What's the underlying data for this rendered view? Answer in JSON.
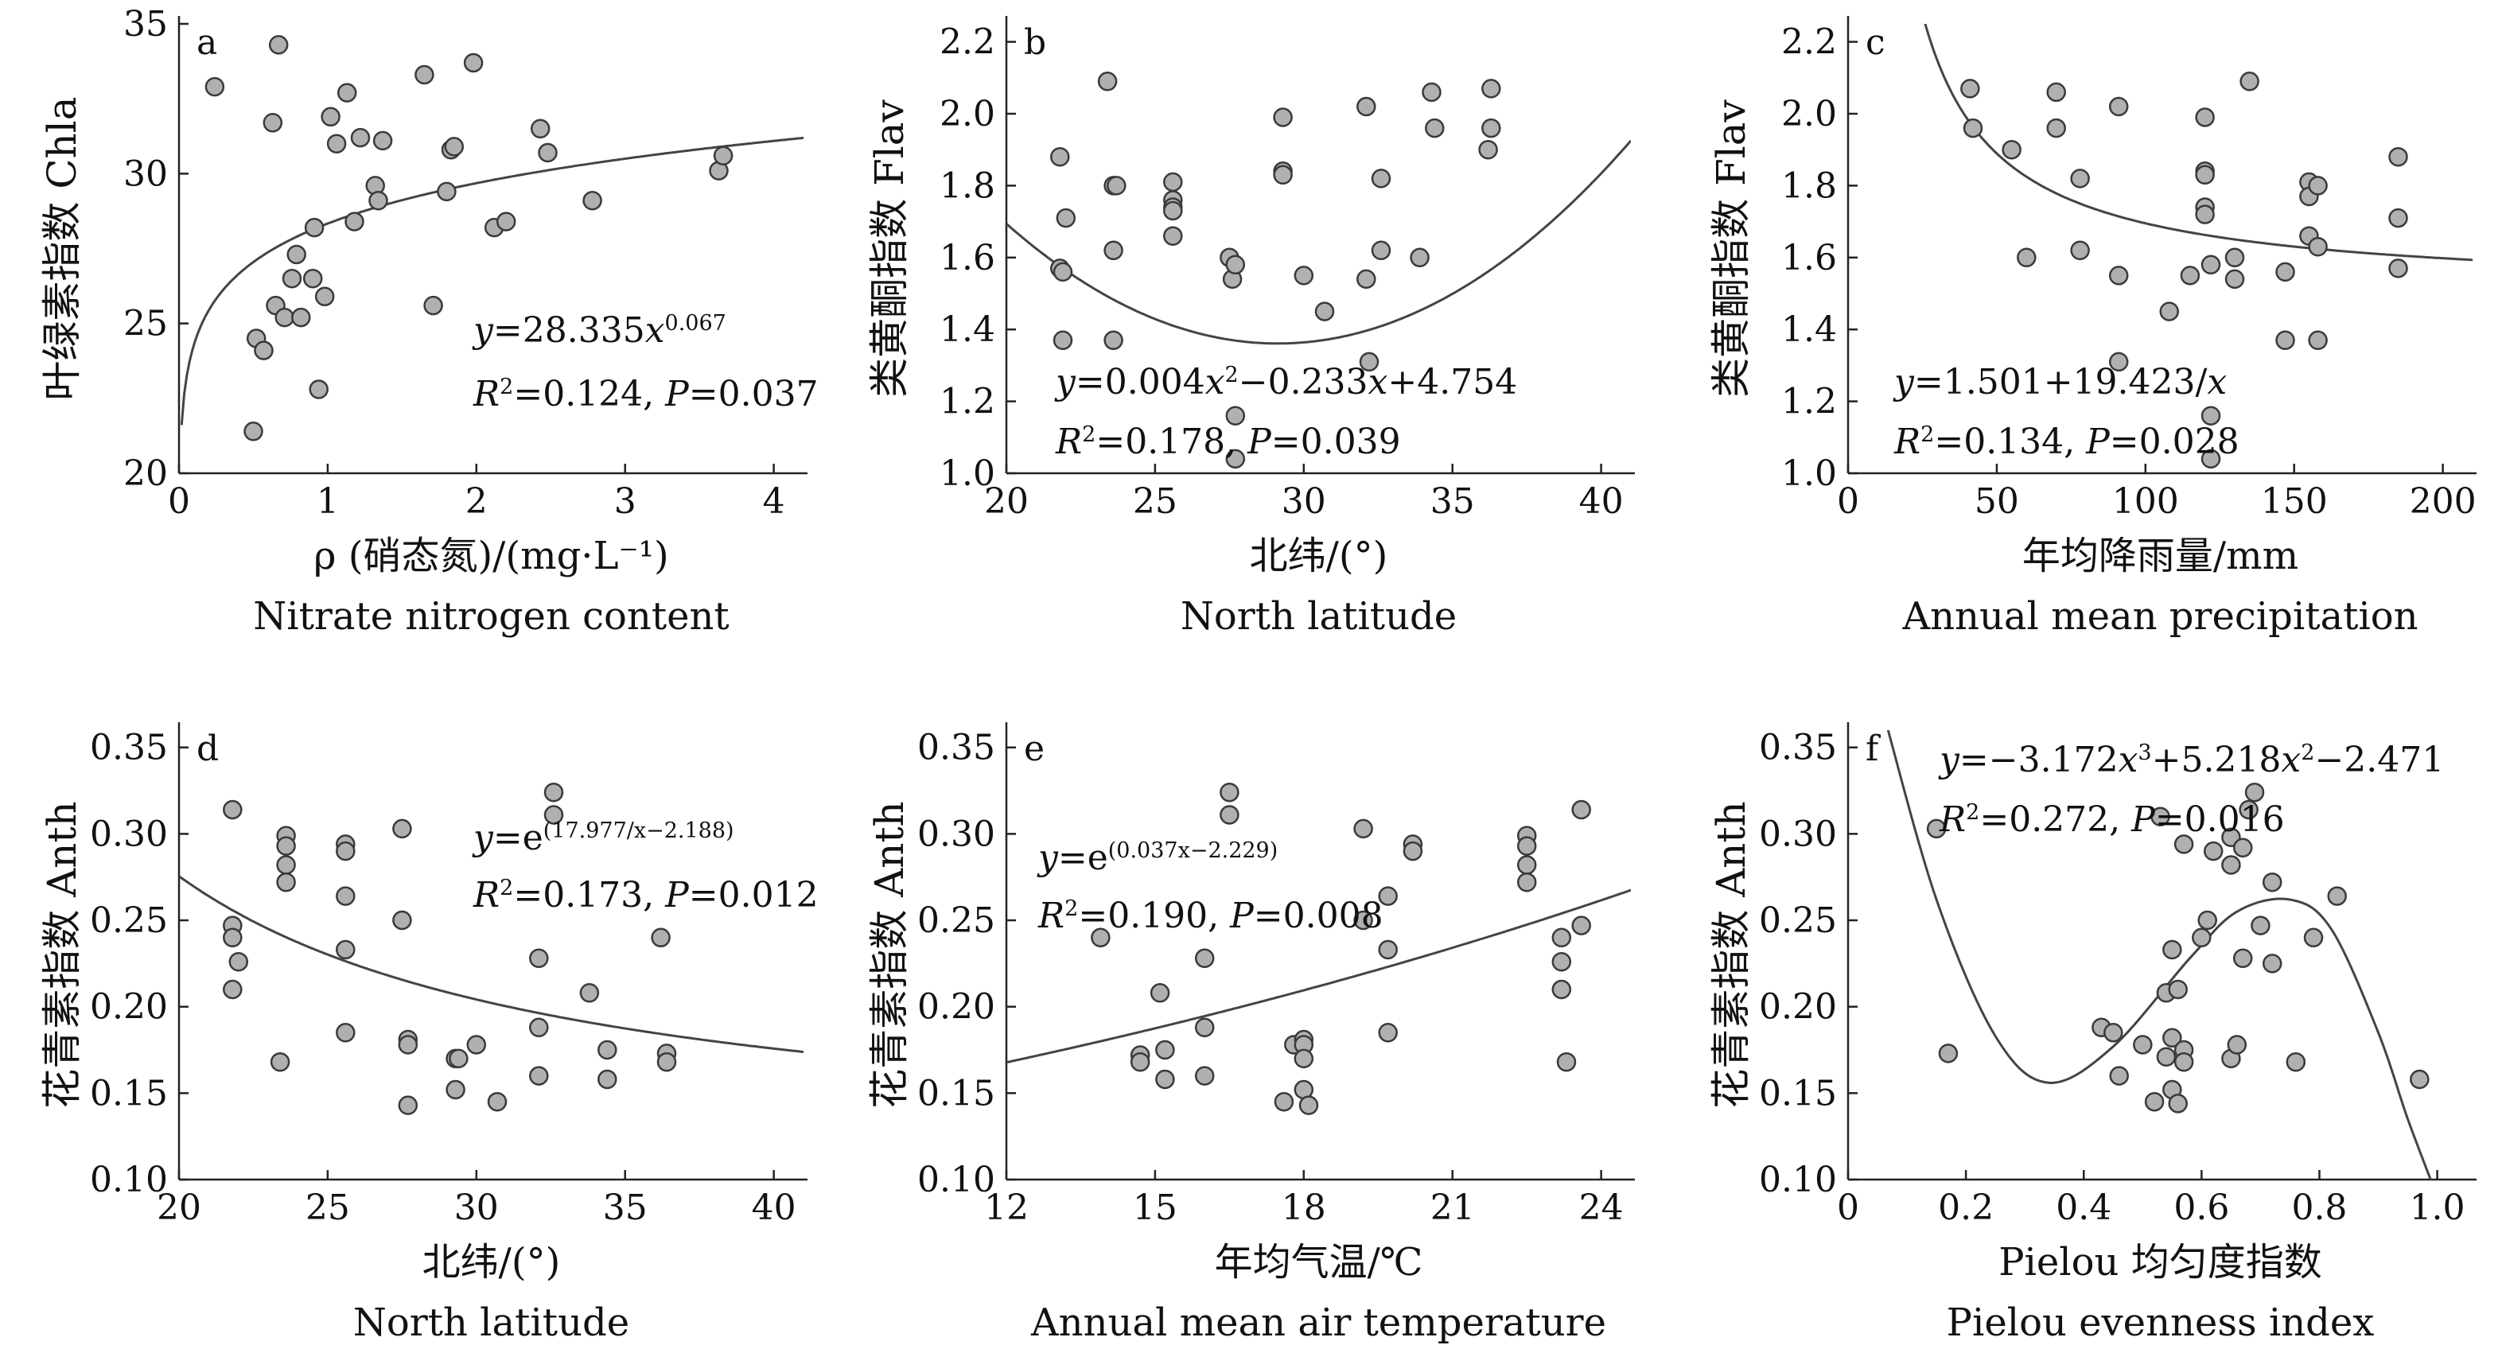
{
  "figure": {
    "point_fill": "#b0b0b0",
    "point_stroke": "#3a3a3a",
    "curve_color": "#444444",
    "axis_color": "#222222"
  },
  "chart_data": [
    {
      "panel": "a",
      "type": "scatter",
      "ylabel": "叶绿素指数 Chla",
      "xlabel": "ρ (硝态氮)/(mg·L⁻¹)",
      "xlabel_en": "Nitrate nitrogen content",
      "xlim": [
        0,
        4.2
      ],
      "ylim": [
        20,
        35
      ],
      "xticks": [
        0,
        1,
        2,
        3,
        4
      ],
      "yticks": [
        20,
        25,
        30,
        35
      ],
      "tick_decimals": 0,
      "grid": false,
      "annotation": {
        "equation": "y=28.335x^0.067",
        "stats": "R²=0.124, P=0.037"
      },
      "fit": {
        "model": "power",
        "a": 28.335,
        "b": 0.067
      },
      "points": [
        [
          0.24,
          32.9
        ],
        [
          0.5,
          21.4
        ],
        [
          0.52,
          24.5
        ],
        [
          0.57,
          24.1
        ],
        [
          0.63,
          31.7
        ],
        [
          0.65,
          25.6
        ],
        [
          0.67,
          34.3
        ],
        [
          0.71,
          25.2
        ],
        [
          0.76,
          26.5
        ],
        [
          0.79,
          27.3
        ],
        [
          0.82,
          25.2
        ],
        [
          0.9,
          26.5
        ],
        [
          0.91,
          28.2
        ],
        [
          0.94,
          22.8
        ],
        [
          0.98,
          25.9
        ],
        [
          1.02,
          31.9
        ],
        [
          1.06,
          31.0
        ],
        [
          1.13,
          32.7
        ],
        [
          1.18,
          28.4
        ],
        [
          1.22,
          31.2
        ],
        [
          1.32,
          29.6
        ],
        [
          1.34,
          29.1
        ],
        [
          1.37,
          31.1
        ],
        [
          1.65,
          33.3
        ],
        [
          1.71,
          25.6
        ],
        [
          1.8,
          29.4
        ],
        [
          1.83,
          30.8
        ],
        [
          1.85,
          30.9
        ],
        [
          1.98,
          33.7
        ],
        [
          2.12,
          28.2
        ],
        [
          2.2,
          28.4
        ],
        [
          2.43,
          31.5
        ],
        [
          2.48,
          30.7
        ],
        [
          2.78,
          29.1
        ],
        [
          3.63,
          30.1
        ],
        [
          3.66,
          30.6
        ]
      ]
    },
    {
      "panel": "b",
      "type": "scatter",
      "ylabel": "类黄酮指数 Flav",
      "xlabel": "北纬/(°)",
      "xlabel_en": "North latitude",
      "xlim": [
        20,
        41
      ],
      "ylim": [
        1.0,
        2.25
      ],
      "xticks": [
        20,
        25,
        30,
        35,
        40
      ],
      "yticks": [
        1.0,
        1.2,
        1.4,
        1.6,
        1.8,
        2.0,
        2.2
      ],
      "tick_decimals": 1,
      "grid": false,
      "annotation": {
        "equation": "y=0.004x²−0.233x+4.754",
        "stats": "R²=0.178, P=0.039"
      },
      "fit": {
        "model": "quadratic",
        "a": 0.004,
        "b": -0.233,
        "c": 4.754
      },
      "points": [
        [
          21.8,
          1.88
        ],
        [
          21.8,
          1.57
        ],
        [
          21.9,
          1.56
        ],
        [
          21.9,
          1.37
        ],
        [
          22.0,
          1.71
        ],
        [
          23.4,
          2.09
        ],
        [
          23.6,
          1.8
        ],
        [
          23.6,
          1.62
        ],
        [
          23.7,
          1.8
        ],
        [
          23.6,
          1.37
        ],
        [
          25.6,
          1.81
        ],
        [
          25.6,
          1.76
        ],
        [
          25.6,
          1.74
        ],
        [
          25.6,
          1.73
        ],
        [
          25.6,
          1.66
        ],
        [
          27.5,
          1.6
        ],
        [
          27.6,
          1.54
        ],
        [
          27.7,
          1.58
        ],
        [
          27.7,
          1.16
        ],
        [
          27.7,
          1.04
        ],
        [
          29.3,
          1.99
        ],
        [
          29.3,
          1.84
        ],
        [
          29.3,
          1.83
        ],
        [
          30.0,
          1.55
        ],
        [
          30.7,
          1.45
        ],
        [
          32.1,
          2.02
        ],
        [
          32.1,
          1.54
        ],
        [
          32.2,
          1.31
        ],
        [
          32.6,
          1.82
        ],
        [
          32.6,
          1.62
        ],
        [
          33.9,
          1.6
        ],
        [
          34.3,
          2.06
        ],
        [
          34.4,
          1.96
        ],
        [
          36.3,
          2.07
        ],
        [
          36.3,
          1.96
        ],
        [
          36.2,
          1.9
        ]
      ]
    },
    {
      "panel": "c",
      "type": "scatter",
      "ylabel": "类黄酮指数 Flav",
      "xlabel": "年均降雨量/mm",
      "xlabel_en": "Annual mean precipitation",
      "xlim": [
        0,
        210
      ],
      "ylim": [
        1.0,
        2.25
      ],
      "xticks": [
        0,
        50,
        100,
        150,
        200
      ],
      "yticks": [
        1.0,
        1.2,
        1.4,
        1.6,
        1.8,
        2.0,
        2.2
      ],
      "tick_decimals": 1,
      "grid": false,
      "annotation": {
        "equation": "y=1.501+19.423/x",
        "stats": "R²=0.134, P=0.028"
      },
      "fit": {
        "model": "inverse",
        "a": 1.501,
        "b": 19.423
      },
      "points": [
        [
          41,
          2.07
        ],
        [
          42,
          1.96
        ],
        [
          55,
          1.9
        ],
        [
          60,
          1.6
        ],
        [
          70,
          2.06
        ],
        [
          70,
          1.96
        ],
        [
          78,
          1.82
        ],
        [
          78,
          1.62
        ],
        [
          91,
          2.02
        ],
        [
          91,
          1.55
        ],
        [
          91,
          1.31
        ],
        [
          108,
          1.45
        ],
        [
          115,
          1.55
        ],
        [
          120,
          1.99
        ],
        [
          120,
          1.84
        ],
        [
          120,
          1.83
        ],
        [
          120,
          1.74
        ],
        [
          120,
          1.72
        ],
        [
          122,
          1.58
        ],
        [
          122,
          1.16
        ],
        [
          122,
          1.04
        ],
        [
          130,
          1.6
        ],
        [
          130,
          1.54
        ],
        [
          135,
          2.09
        ],
        [
          147,
          1.56
        ],
        [
          147,
          1.37
        ],
        [
          155,
          1.81
        ],
        [
          155,
          1.77
        ],
        [
          155,
          1.66
        ],
        [
          158,
          1.8
        ],
        [
          158,
          1.63
        ],
        [
          158,
          1.37
        ],
        [
          185,
          1.88
        ],
        [
          185,
          1.71
        ],
        [
          185,
          1.57
        ]
      ]
    },
    {
      "panel": "d",
      "type": "scatter",
      "ylabel": "花青素指数 Anth",
      "xlabel": "北纬/(°)",
      "xlabel_en": "North latitude",
      "xlim": [
        20,
        41
      ],
      "ylim": [
        0.1,
        0.36
      ],
      "xticks": [
        20,
        25,
        30,
        35,
        40
      ],
      "yticks": [
        0.1,
        0.15,
        0.2,
        0.25,
        0.3,
        0.35
      ],
      "tick_decimals": 2,
      "grid": false,
      "annotation": {
        "equation": "y=e^(17.977/x−2.188)",
        "stats": "R²=0.173, P=0.012"
      },
      "fit": {
        "model": "exp_inverse",
        "a": 17.977,
        "b": -2.188
      },
      "points": [
        [
          21.8,
          0.314
        ],
        [
          21.8,
          0.247
        ],
        [
          21.8,
          0.24
        ],
        [
          22.0,
          0.226
        ],
        [
          21.8,
          0.21
        ],
        [
          23.4,
          0.168
        ],
        [
          23.6,
          0.299
        ],
        [
          23.6,
          0.293
        ],
        [
          23.6,
          0.282
        ],
        [
          23.6,
          0.272
        ],
        [
          25.6,
          0.294
        ],
        [
          25.6,
          0.29
        ],
        [
          25.6,
          0.264
        ],
        [
          25.6,
          0.233
        ],
        [
          25.6,
          0.185
        ],
        [
          27.5,
          0.303
        ],
        [
          27.5,
          0.25
        ],
        [
          27.7,
          0.181
        ],
        [
          27.7,
          0.178
        ],
        [
          27.7,
          0.143
        ],
        [
          29.3,
          0.17
        ],
        [
          29.4,
          0.17
        ],
        [
          29.3,
          0.152
        ],
        [
          30.0,
          0.178
        ],
        [
          30.7,
          0.145
        ],
        [
          32.1,
          0.228
        ],
        [
          32.1,
          0.188
        ],
        [
          32.1,
          0.16
        ],
        [
          32.6,
          0.324
        ],
        [
          32.6,
          0.311
        ],
        [
          33.8,
          0.208
        ],
        [
          34.4,
          0.175
        ],
        [
          34.4,
          0.158
        ],
        [
          36.2,
          0.24
        ],
        [
          36.4,
          0.173
        ],
        [
          36.4,
          0.168
        ]
      ]
    },
    {
      "panel": "e",
      "type": "scatter",
      "ylabel": "花青素指数 Anth",
      "xlabel": "年均气温/℃",
      "xlabel_en": "Annual mean air temperature",
      "xlim": [
        12,
        24.6
      ],
      "ylim": [
        0.1,
        0.36
      ],
      "xticks": [
        12,
        15,
        18,
        21,
        24
      ],
      "yticks": [
        0.1,
        0.15,
        0.2,
        0.25,
        0.3,
        0.35
      ],
      "tick_decimals": 2,
      "grid": false,
      "annotation": {
        "equation": "y=e^(0.037x−2.229)",
        "stats": "R²=0.190, P=0.008"
      },
      "fit": {
        "model": "exp_linear",
        "a": 0.037,
        "b": -2.229
      },
      "points": [
        [
          13.9,
          0.24
        ],
        [
          14.7,
          0.172
        ],
        [
          14.7,
          0.168
        ],
        [
          15.1,
          0.208
        ],
        [
          15.2,
          0.175
        ],
        [
          15.2,
          0.158
        ],
        [
          16.0,
          0.228
        ],
        [
          16.0,
          0.188
        ],
        [
          16.0,
          0.16
        ],
        [
          16.5,
          0.324
        ],
        [
          16.5,
          0.311
        ],
        [
          17.6,
          0.145
        ],
        [
          17.8,
          0.178
        ],
        [
          18.0,
          0.181
        ],
        [
          18.0,
          0.178
        ],
        [
          18.0,
          0.17
        ],
        [
          18.0,
          0.152
        ],
        [
          18.1,
          0.143
        ],
        [
          19.2,
          0.303
        ],
        [
          19.2,
          0.25
        ],
        [
          19.7,
          0.264
        ],
        [
          19.7,
          0.233
        ],
        [
          19.7,
          0.185
        ],
        [
          20.2,
          0.294
        ],
        [
          20.2,
          0.29
        ],
        [
          22.5,
          0.299
        ],
        [
          22.5,
          0.293
        ],
        [
          22.5,
          0.282
        ],
        [
          22.5,
          0.272
        ],
        [
          23.2,
          0.24
        ],
        [
          23.2,
          0.226
        ],
        [
          23.2,
          0.21
        ],
        [
          23.3,
          0.168
        ],
        [
          23.6,
          0.314
        ],
        [
          23.6,
          0.247
        ]
      ]
    },
    {
      "panel": "f",
      "type": "scatter",
      "ylabel": "花青素指数 Anth",
      "xlabel": "Pielou 均匀度指数",
      "xlabel_en": "Pielou evenness index",
      "xlim": [
        0,
        1.06
      ],
      "ylim": [
        0.1,
        0.36
      ],
      "xticks": [
        0,
        0.2,
        0.4,
        0.6,
        0.8,
        1.0
      ],
      "yticks": [
        0.1,
        0.15,
        0.2,
        0.25,
        0.3,
        0.35
      ],
      "tick_decimals": 2,
      "grid": false,
      "annotation": {
        "equation": "y=−3.172x³+5.218x²−2.471",
        "stats": "R²=0.272, P=0.016"
      },
      "fit": {
        "model": "cubic_spline_visual",
        "knots": [
          [
            0.06,
            0.37
          ],
          [
            0.15,
            0.262
          ],
          [
            0.25,
            0.183
          ],
          [
            0.34,
            0.156
          ],
          [
            0.45,
            0.177
          ],
          [
            0.58,
            0.228
          ],
          [
            0.66,
            0.255
          ],
          [
            0.75,
            0.262
          ],
          [
            0.82,
            0.245
          ],
          [
            0.9,
            0.185
          ],
          [
            0.95,
            0.135
          ],
          [
            1.0,
            0.09
          ]
        ]
      },
      "points": [
        [
          0.15,
          0.303
        ],
        [
          0.17,
          0.173
        ],
        [
          0.43,
          0.188
        ],
        [
          0.45,
          0.185
        ],
        [
          0.46,
          0.16
        ],
        [
          0.5,
          0.178
        ],
        [
          0.52,
          0.145
        ],
        [
          0.53,
          0.31
        ],
        [
          0.54,
          0.208
        ],
        [
          0.54,
          0.171
        ],
        [
          0.55,
          0.152
        ],
        [
          0.55,
          0.182
        ],
        [
          0.55,
          0.233
        ],
        [
          0.56,
          0.21
        ],
        [
          0.56,
          0.144
        ],
        [
          0.57,
          0.294
        ],
        [
          0.57,
          0.175
        ],
        [
          0.57,
          0.168
        ],
        [
          0.6,
          0.24
        ],
        [
          0.61,
          0.25
        ],
        [
          0.62,
          0.29
        ],
        [
          0.65,
          0.298
        ],
        [
          0.65,
          0.282
        ],
        [
          0.65,
          0.17
        ],
        [
          0.66,
          0.178
        ],
        [
          0.67,
          0.292
        ],
        [
          0.67,
          0.228
        ],
        [
          0.68,
          0.314
        ],
        [
          0.69,
          0.324
        ],
        [
          0.7,
          0.247
        ],
        [
          0.72,
          0.272
        ],
        [
          0.72,
          0.225
        ],
        [
          0.76,
          0.168
        ],
        [
          0.79,
          0.24
        ],
        [
          0.83,
          0.264
        ],
        [
          0.97,
          0.158
        ]
      ]
    }
  ]
}
